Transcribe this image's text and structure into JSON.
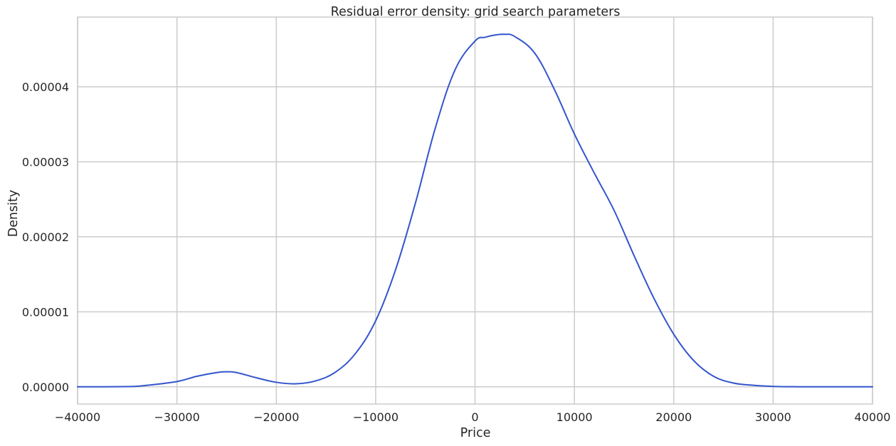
{
  "chart_data": {
    "type": "line",
    "title": "Residual error density: grid search parameters",
    "xlabel": "Price",
    "ylabel": "Density",
    "xlim": [
      -40000,
      40000
    ],
    "ylim": [
      -2.3e-06,
      4.93e-05
    ],
    "grid": true,
    "legend": "none",
    "line_color": "#3355cc",
    "x_ticks": [
      -40000,
      -30000,
      -20000,
      -10000,
      0,
      10000,
      20000,
      30000,
      40000
    ],
    "x_tick_labels": [
      "−40000",
      "−30000",
      "−20000",
      "−10000",
      "0",
      "10000",
      "20000",
      "30000",
      "40000"
    ],
    "y_ticks": [
      0,
      1e-05,
      2e-05,
      3e-05,
      4e-05
    ],
    "y_tick_labels": [
      "0.00000",
      "0.00001",
      "0.00002",
      "0.00003",
      "0.00004"
    ],
    "series": [
      {
        "x": [
          -40000,
          -35000,
          -33000,
          -30000,
          -28000,
          -26000,
          -25000,
          -24000,
          -22000,
          -20000,
          -18000,
          -16000,
          -14000,
          -12000,
          -10000,
          -8000,
          -6000,
          -4000,
          -2000,
          0,
          1000,
          2000,
          3000,
          4000,
          6000,
          8000,
          10000,
          12000,
          14000,
          16000,
          18000,
          20000,
          22000,
          24000,
          26000,
          28000,
          30000,
          32000,
          35000,
          40000
        ],
        "y": [
          0.0,
          2e-08,
          2e-07,
          7e-07,
          1.4e-06,
          1.9e-06,
          2e-06,
          1.9e-06,
          1.2e-06,
          6e-07,
          4e-07,
          8e-07,
          2e-06,
          4.5e-06,
          8.8e-06,
          1.56e-05,
          2.45e-05,
          3.45e-05,
          4.23e-05,
          4.61e-05,
          4.66e-05,
          4.69e-05,
          4.7e-05,
          4.67e-05,
          4.45e-05,
          3.96e-05,
          3.37e-05,
          2.85e-05,
          2.35e-05,
          1.75e-05,
          1.18e-05,
          7e-06,
          3.5e-06,
          1.4e-06,
          5e-07,
          2e-07,
          5e-08,
          1e-08,
          0.0,
          0.0
        ]
      }
    ]
  }
}
